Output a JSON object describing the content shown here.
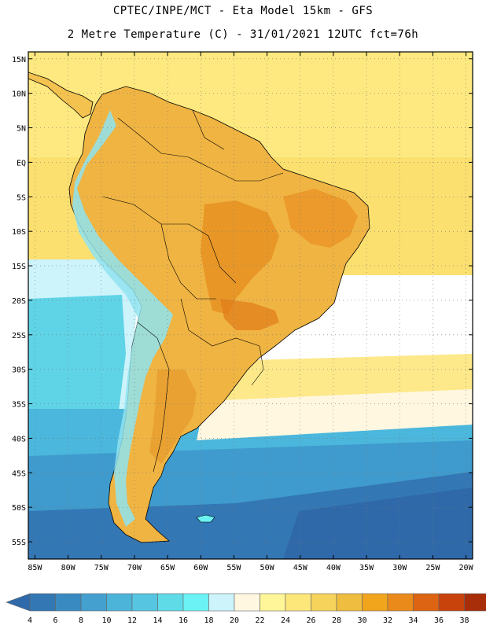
{
  "title_line1": "CPTEC/INPE/MCT -  Eta Model 15km - GFS",
  "title_line2": "2 Metre Temperature (C) - 31/01/2021 12UTC fct=76h",
  "map_data": {
    "variable": "2 Metre Temperature",
    "units": "C",
    "lon_range": [
      -86,
      -19
    ],
    "lat_range": [
      -57.5,
      16
    ],
    "lon_ticks": [
      -85,
      -80,
      -75,
      -70,
      -65,
      -60,
      -55,
      -50,
      -45,
      -40,
      -35,
      -30,
      -25,
      -20
    ],
    "lon_labels": [
      "85W",
      "80W",
      "75W",
      "70W",
      "65W",
      "60W",
      "55W",
      "50W",
      "45W",
      "40W",
      "35W",
      "30W",
      "25W",
      "20W"
    ],
    "lat_ticks": [
      15,
      10,
      5,
      0,
      -5,
      -10,
      -15,
      -20,
      -25,
      -30,
      -35,
      -40,
      -45,
      -50,
      -55
    ],
    "lat_labels": [
      "15N",
      "10N",
      "5N",
      "EQ",
      "5S",
      "10S",
      "15S",
      "20S",
      "25S",
      "30S",
      "35S",
      "40S",
      "45S",
      "50S",
      "55S"
    ]
  },
  "legend": {
    "labels": [
      "4",
      "6",
      "8",
      "10",
      "12",
      "14",
      "16",
      "18",
      "20",
      "22",
      "24",
      "26",
      "28",
      "30",
      "32",
      "34",
      "36",
      "38"
    ],
    "colors": [
      "#3377b4",
      "#3a8ac2",
      "#43a0cf",
      "#4cb3d9",
      "#56c5e1",
      "#5fdbe8",
      "#6bf2f5",
      "#cdf3fb",
      "#fff7e0",
      "#fff599",
      "#fde77b",
      "#f6d35b",
      "#efbd3f",
      "#f0a51c",
      "#ea8a1a",
      "#dd6412",
      "#c8420b",
      "#a82e0a"
    ],
    "under_color": "#2f69a9",
    "over_color": "#a82e0a"
  }
}
